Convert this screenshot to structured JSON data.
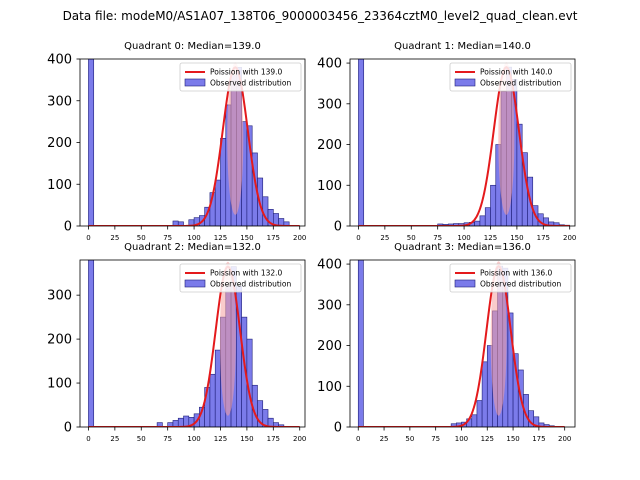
{
  "figure": {
    "suptitle": "Data file: modeM0/AS1A07_138T06_9000003456_23364cztM0_level2_quad_clean.evt"
  },
  "colors": {
    "bar_fill": "#7b7bea",
    "bar_edge": "#1e1e78",
    "curve": "#e41a1c",
    "peak_marker": "#f5a0a0"
  },
  "chart_data": [
    {
      "type": "bar",
      "title": "Quadrant 0: Median=139.0",
      "median": 139.0,
      "bin_width": 5,
      "xlim": [
        -8,
        205
      ],
      "ylim": [
        0,
        400
      ],
      "xticks": [
        0,
        25,
        50,
        75,
        100,
        125,
        150,
        175,
        200
      ],
      "yticks": [
        0,
        100,
        200,
        300,
        400
      ],
      "bins": [
        [
          0,
          400
        ],
        [
          80,
          12
        ],
        [
          85,
          10
        ],
        [
          95,
          15
        ],
        [
          100,
          20
        ],
        [
          105,
          25
        ],
        [
          110,
          45
        ],
        [
          115,
          80
        ],
        [
          120,
          110
        ],
        [
          125,
          210
        ],
        [
          130,
          290
        ],
        [
          135,
          360
        ],
        [
          140,
          380
        ],
        [
          145,
          250
        ],
        [
          150,
          240
        ],
        [
          155,
          175
        ],
        [
          160,
          115
        ],
        [
          165,
          70
        ],
        [
          170,
          40
        ],
        [
          175,
          30
        ],
        [
          180,
          18
        ],
        [
          185,
          10
        ]
      ],
      "curve": {
        "mu": 139.0,
        "amplitude": 380
      },
      "legend": {
        "curve_label": "Poission with 139.0",
        "bar_label": "Observed distribution",
        "loc": "upper right"
      }
    },
    {
      "type": "bar",
      "title": "Quadrant 1: Median=140.0",
      "median": 140.0,
      "bin_width": 5,
      "xlim": [
        -8,
        205
      ],
      "ylim": [
        0,
        410
      ],
      "xticks": [
        0,
        25,
        50,
        75,
        100,
        125,
        150,
        175,
        200
      ],
      "yticks": [
        0,
        100,
        200,
        300,
        400
      ],
      "bins": [
        [
          0,
          410
        ],
        [
          75,
          5
        ],
        [
          80,
          4
        ],
        [
          85,
          5
        ],
        [
          90,
          6
        ],
        [
          95,
          6
        ],
        [
          100,
          8
        ],
        [
          105,
          9
        ],
        [
          110,
          12
        ],
        [
          115,
          25
        ],
        [
          120,
          45
        ],
        [
          125,
          100
        ],
        [
          130,
          200
        ],
        [
          135,
          330
        ],
        [
          140,
          390
        ],
        [
          145,
          360
        ],
        [
          150,
          250
        ],
        [
          155,
          180
        ],
        [
          160,
          120
        ],
        [
          165,
          50
        ],
        [
          170,
          30
        ],
        [
          175,
          20
        ],
        [
          180,
          10
        ],
        [
          185,
          8
        ],
        [
          190,
          3
        ],
        [
          195,
          2
        ]
      ],
      "curve": {
        "mu": 140.0,
        "amplitude": 390
      },
      "legend": {
        "curve_label": "Poission with 140.0",
        "bar_label": "Observed distribution",
        "loc": "upper right"
      }
    },
    {
      "type": "bar",
      "title": "Quadrant 2: Median=132.0",
      "median": 132.0,
      "bin_width": 5,
      "xlim": [
        -8,
        205
      ],
      "ylim": [
        0,
        380
      ],
      "xticks": [
        0,
        25,
        50,
        75,
        100,
        125,
        150,
        175,
        200
      ],
      "yticks": [
        0,
        100,
        200,
        300
      ],
      "bins": [
        [
          0,
          380
        ],
        [
          65,
          10
        ],
        [
          75,
          10
        ],
        [
          80,
          15
        ],
        [
          85,
          20
        ],
        [
          90,
          25
        ],
        [
          95,
          22
        ],
        [
          100,
          30
        ],
        [
          105,
          45
        ],
        [
          110,
          90
        ],
        [
          115,
          120
        ],
        [
          120,
          175
        ],
        [
          125,
          250
        ],
        [
          130,
          320
        ],
        [
          135,
          365
        ],
        [
          140,
          320
        ],
        [
          145,
          250
        ],
        [
          150,
          200
        ],
        [
          155,
          95
        ],
        [
          160,
          60
        ],
        [
          165,
          40
        ],
        [
          170,
          20
        ],
        [
          175,
          10
        ],
        [
          180,
          5
        ]
      ],
      "curve": {
        "mu": 132.0,
        "amplitude": 365
      },
      "legend": {
        "curve_label": "Poission with 132.0",
        "bar_label": "Observed distribution",
        "loc": "upper right"
      }
    },
    {
      "type": "bar",
      "title": "Quadrant 3: Median=136.0",
      "median": 136.0,
      "bin_width": 5,
      "xlim": [
        -8,
        210
      ],
      "ylim": [
        0,
        410
      ],
      "xticks": [
        0,
        25,
        50,
        75,
        100,
        125,
        150,
        175,
        200
      ],
      "yticks": [
        0,
        100,
        200,
        300,
        400
      ],
      "bins": [
        [
          0,
          410
        ],
        [
          90,
          8
        ],
        [
          95,
          10
        ],
        [
          100,
          12
        ],
        [
          105,
          20
        ],
        [
          110,
          30
        ],
        [
          115,
          65
        ],
        [
          120,
          160
        ],
        [
          125,
          200
        ],
        [
          130,
          285
        ],
        [
          135,
          395
        ],
        [
          140,
          390
        ],
        [
          145,
          280
        ],
        [
          150,
          180
        ],
        [
          155,
          140
        ],
        [
          160,
          80
        ],
        [
          165,
          40
        ],
        [
          170,
          25
        ],
        [
          175,
          10
        ],
        [
          180,
          6
        ],
        [
          185,
          3
        ]
      ],
      "curve": {
        "mu": 136.0,
        "amplitude": 395
      },
      "legend": {
        "curve_label": "Poission with 136.0",
        "bar_label": "Observed distribution",
        "loc": "upper right"
      }
    }
  ]
}
